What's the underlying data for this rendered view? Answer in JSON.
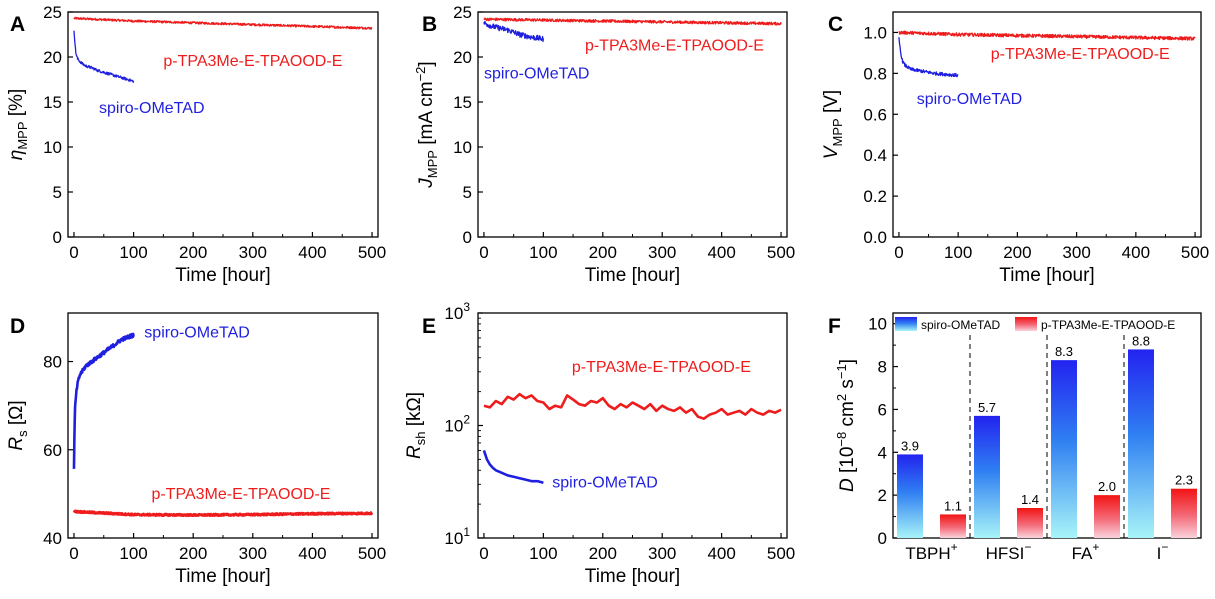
{
  "colors": {
    "spiro": "#1f1fe0",
    "ptpa": "#ee1c1c"
  },
  "chart_data": [
    {
      "panel": "A",
      "type": "line",
      "xlabel": "Time [hour]",
      "ylabel": {
        "main": "η",
        "sub": "MPP",
        "unit": "[%]"
      },
      "xlim": [
        -10,
        510
      ],
      "ylim": [
        0,
        25
      ],
      "xticks": [
        "0",
        "100",
        "200",
        "300",
        "400",
        "500"
      ],
      "yticks": [
        "0",
        "5",
        "10",
        "15",
        "20",
        "25"
      ],
      "series": [
        {
          "name": "p-TPA3Me-E-TPAOOD-E",
          "color": "ptpa",
          "x": [
            0,
            100,
            200,
            300,
            400,
            500
          ],
          "y": [
            24.3,
            24.0,
            23.8,
            23.6,
            23.4,
            23.2
          ],
          "noise": 0.12
        },
        {
          "name": "spiro-OMeTAD",
          "color": "spiro",
          "x": [
            0,
            3,
            6,
            10,
            15,
            20,
            30,
            40,
            50,
            60,
            70,
            80,
            90,
            100
          ],
          "y": [
            23.0,
            20.5,
            19.8,
            19.5,
            19.2,
            19.0,
            18.8,
            18.5,
            18.3,
            18.1,
            17.9,
            17.7,
            17.5,
            17.3
          ],
          "noise": 0.15
        }
      ],
      "labels": [
        {
          "text": "p-TPA3Me-E-TPAOOD-E",
          "color": "ptpa",
          "x": 150,
          "y": 19.0
        },
        {
          "text": "spiro-OMeTAD",
          "color": "spiro",
          "x": 42,
          "y": 13.8
        }
      ]
    },
    {
      "panel": "B",
      "type": "line",
      "xlabel": "Time [hour]",
      "ylabel": {
        "main": "J",
        "sub": "MPP",
        "unit": "[mA cm",
        "sup": "−2",
        "unit2": "]"
      },
      "xlim": [
        -10,
        510
      ],
      "ylim": [
        0,
        25
      ],
      "xticks": [
        "0",
        "100",
        "200",
        "300",
        "400",
        "500"
      ],
      "yticks": [
        "0",
        "5",
        "10",
        "15",
        "20",
        "25"
      ],
      "series": [
        {
          "name": "p-TPA3Me-E-TPAOOD-E",
          "color": "ptpa",
          "x": [
            0,
            100,
            200,
            300,
            400,
            500
          ],
          "y": [
            24.2,
            24.1,
            24.0,
            23.9,
            23.8,
            23.7
          ],
          "noise": 0.15
        },
        {
          "name": "spiro-OMeTAD",
          "color": "spiro",
          "x": [
            0,
            10,
            20,
            40,
            60,
            80,
            100
          ],
          "y": [
            23.8,
            23.5,
            23.3,
            23.0,
            22.5,
            22.2,
            22.0
          ],
          "noise": 0.3
        }
      ],
      "labels": [
        {
          "text": "p-TPA3Me-E-TPAOOD-E",
          "color": "ptpa",
          "x": 170,
          "y": 20.7
        },
        {
          "text": "spiro-OMeTAD",
          "color": "spiro",
          "x": 0,
          "y": 17.6
        }
      ]
    },
    {
      "panel": "C",
      "type": "line",
      "xlabel": "Time [hour]",
      "ylabel": {
        "main": "V",
        "sub": "MPP",
        "unit": "[V]"
      },
      "xlim": [
        -10,
        510
      ],
      "ylim": [
        0.0,
        1.1
      ],
      "xticks": [
        "0",
        "100",
        "200",
        "300",
        "400",
        "500"
      ],
      "yticks": [
        "0.0",
        "0.2",
        "0.4",
        "0.6",
        "0.8",
        "1.0"
      ],
      "series": [
        {
          "name": "p-TPA3Me-E-TPAOOD-E",
          "color": "ptpa",
          "x": [
            0,
            100,
            200,
            300,
            400,
            500
          ],
          "y": [
            1.0,
            0.99,
            0.985,
            0.98,
            0.975,
            0.97
          ],
          "noise": 0.008
        },
        {
          "name": "spiro-OMeTAD",
          "color": "spiro",
          "x": [
            0,
            3,
            6,
            10,
            20,
            40,
            60,
            80,
            100
          ],
          "y": [
            0.97,
            0.9,
            0.86,
            0.84,
            0.82,
            0.81,
            0.8,
            0.795,
            0.79
          ],
          "noise": 0.008
        }
      ],
      "labels": [
        {
          "text": "p-TPA3Me-E-TPAOOD-E",
          "color": "ptpa",
          "x": 155,
          "y": 0.87
        },
        {
          "text": "spiro-OMeTAD",
          "color": "spiro",
          "x": 30,
          "y": 0.65
        }
      ]
    },
    {
      "panel": "D",
      "type": "line",
      "xlabel": "Time [hour]",
      "ylabel": {
        "main": "R",
        "sub": "s",
        "unit": "[Ω]"
      },
      "xlim": [
        -10,
        510
      ],
      "ylim": [
        40,
        91
      ],
      "xticks": [
        "0",
        "100",
        "200",
        "300",
        "400",
        "500"
      ],
      "yticks": [
        "40",
        "60",
        "80"
      ],
      "ytick_values": [
        40,
        60,
        80
      ],
      "series": [
        {
          "name": "spiro-OMeTAD",
          "color": "spiro",
          "x": [
            0,
            1,
            2,
            4,
            6,
            10,
            15,
            20,
            30,
            40,
            50,
            60,
            70,
            80,
            90,
            100
          ],
          "y": [
            56,
            65,
            70,
            73,
            75,
            77,
            78,
            79,
            80,
            81,
            82,
            83,
            84,
            85,
            85.5,
            86
          ],
          "noise": 0.4
        },
        {
          "name": "p-TPA3Me-E-TPAOOD-E",
          "color": "ptpa",
          "x": [
            0,
            100,
            200,
            300,
            400,
            500
          ],
          "y": [
            46.0,
            45.3,
            45.2,
            45.3,
            45.5,
            45.6
          ],
          "noise": 0.2
        }
      ],
      "labels": [
        {
          "text": "spiro-OMeTAD",
          "color": "spiro",
          "x": 118,
          "y": 85.5
        },
        {
          "text": "p-TPA3Me-E-TPAOOD-E",
          "color": "ptpa",
          "x": 130,
          "y": 48.8
        }
      ]
    },
    {
      "panel": "E",
      "type": "line",
      "yscale": "log",
      "xlabel": "Time [hour]",
      "ylabel": {
        "main": "R",
        "sub": "sh",
        "unit": "[kΩ]"
      },
      "xlim": [
        -10,
        510
      ],
      "ylim": [
        10,
        1000
      ],
      "xticks": [
        "0",
        "100",
        "200",
        "300",
        "400",
        "500"
      ],
      "yticks": [
        {
          "base": "10",
          "exp": "1",
          "value": 10
        },
        {
          "base": "10",
          "exp": "2",
          "value": 100
        },
        {
          "base": "10",
          "exp": "3",
          "value": 1000
        }
      ],
      "series": [
        {
          "name": "p-TPA3Me-E-TPAOOD-E",
          "color": "ptpa",
          "x": [
            0,
            10,
            20,
            30,
            40,
            50,
            60,
            70,
            80,
            90,
            100,
            110,
            120,
            130,
            140,
            150,
            160,
            170,
            180,
            190,
            200,
            210,
            220,
            230,
            240,
            250,
            260,
            270,
            280,
            290,
            300,
            310,
            320,
            330,
            340,
            350,
            360,
            370,
            380,
            390,
            400,
            410,
            420,
            430,
            440,
            450,
            460,
            470,
            480,
            490,
            500
          ],
          "y": [
            150,
            145,
            165,
            155,
            180,
            170,
            190,
            175,
            185,
            165,
            160,
            140,
            150,
            145,
            185,
            170,
            155,
            150,
            165,
            160,
            175,
            150,
            140,
            155,
            145,
            160,
            150,
            140,
            155,
            135,
            150,
            140,
            135,
            145,
            130,
            140,
            120,
            115,
            125,
            130,
            140,
            125,
            130,
            135,
            125,
            140,
            130,
            125,
            135,
            130,
            138
          ],
          "noise": 0
        },
        {
          "name": "spiro-OMeTAD",
          "color": "spiro",
          "x": [
            0,
            5,
            10,
            15,
            20,
            30,
            40,
            50,
            60,
            70,
            80,
            90,
            100
          ],
          "y": [
            60,
            50,
            45,
            42,
            40,
            38,
            36,
            35,
            34,
            33,
            32,
            32,
            31
          ],
          "noise": 0
        }
      ],
      "labels": [
        {
          "text": "p-TPA3Me-E-TPAOOD-E",
          "color": "ptpa",
          "x": 148,
          "y": 300
        },
        {
          "text": "spiro-OMeTAD",
          "color": "spiro",
          "x": 115,
          "y": 28
        }
      ]
    },
    {
      "panel": "F",
      "type": "bar",
      "ylabel": {
        "main": "D",
        "unit": "[10",
        "sup": "−8",
        "unit2": " cm",
        "sup2": "2",
        "unit3": " s",
        "sup3": "−1",
        "unit4": "]"
      },
      "ylim": [
        0,
        10.5
      ],
      "yticks": [
        "0",
        "2",
        "4",
        "6",
        "8",
        "10"
      ],
      "categories": [
        {
          "label": "TBPH",
          "sup": "+"
        },
        {
          "label": "HFSI",
          "sup": "−"
        },
        {
          "label": "FA",
          "sup": "+"
        },
        {
          "label": "I",
          "sup": "−"
        }
      ],
      "series": [
        {
          "name": "spiro-OMeTAD",
          "color": "spiro",
          "values": [
            3.9,
            5.7,
            8.3,
            8.8
          ],
          "labels": [
            "3.9",
            "5.7",
            "8.3",
            "8.8"
          ]
        },
        {
          "name": "p-TPA3Me-E-TPAOOD-E",
          "color": "ptpa",
          "values": [
            1.1,
            1.4,
            2.0,
            2.3
          ],
          "labels": [
            "1.1",
            "1.4",
            "2.0",
            "2.3"
          ]
        }
      ],
      "legend": "top"
    }
  ]
}
